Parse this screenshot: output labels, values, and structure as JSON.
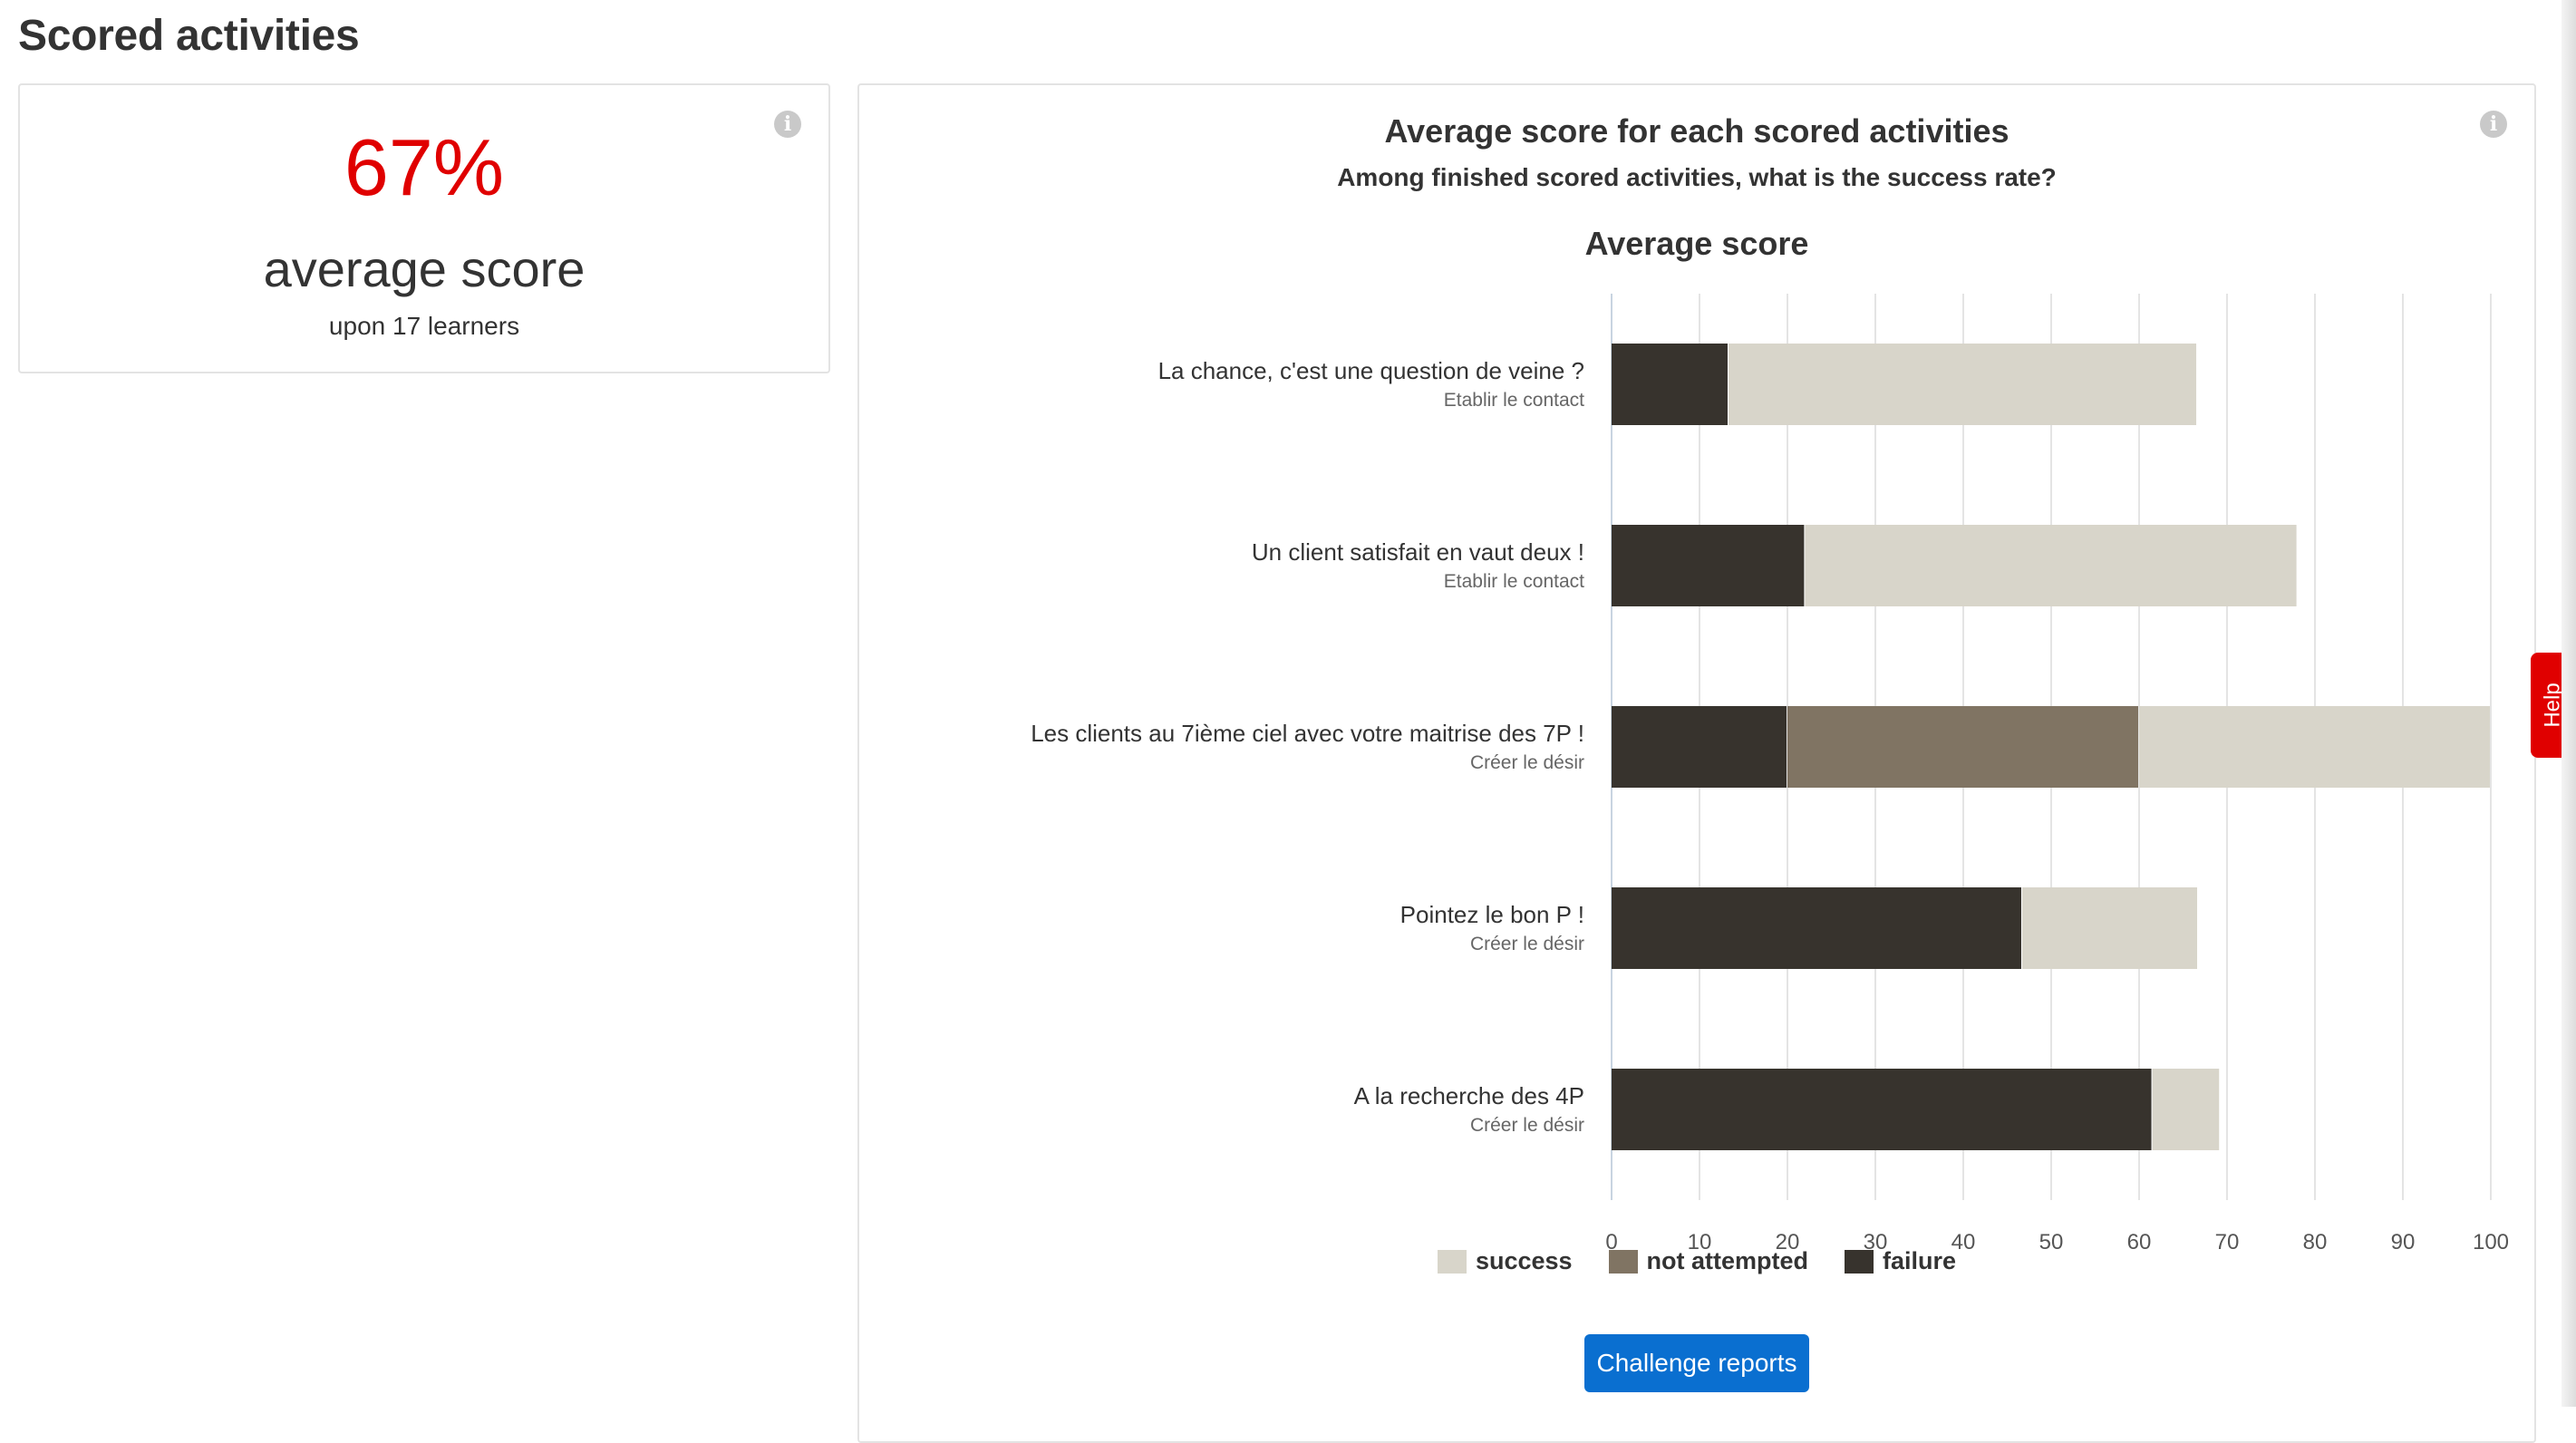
{
  "page": {
    "title": "Scored activities"
  },
  "kpi": {
    "value": "67%",
    "label": "average score",
    "sub": "upon 17 learners",
    "value_color": "#e00000"
  },
  "chart_card": {
    "title": "Average score for each scored activities",
    "subtitle": "Among finished scored activities, what is the success rate?",
    "button_label": "Challenge reports"
  },
  "help": {
    "label": "Help",
    "color": "#e00000"
  },
  "icons": {
    "info": "info-icon"
  },
  "chart_data": {
    "type": "bar",
    "orientation": "horizontal",
    "stacked": true,
    "title": "Average score",
    "xlabel": "",
    "ylabel": "",
    "xlim": [
      0,
      100
    ],
    "xticks": [
      "0",
      "10",
      "20",
      "30",
      "40",
      "50",
      "60",
      "70",
      "80",
      "90",
      "100"
    ],
    "grid": true,
    "legend_position": "bottom",
    "categories": [
      {
        "label": "La chance, c'est une question de veine ?",
        "sub": "Etablir le contact"
      },
      {
        "label": "Un client satisfait en vaut deux !",
        "sub": "Etablir le contact"
      },
      {
        "label": "Les clients au 7ième ciel avec votre maitrise des 7P !",
        "sub": "Créer le désir"
      },
      {
        "label": "Pointez le bon P !",
        "sub": "Créer le désir"
      },
      {
        "label": "A la recherche des 4P",
        "sub": "Créer le désir"
      }
    ],
    "series": [
      {
        "name": "failure",
        "color": "#37332d",
        "values": [
          13.3,
          22,
          20,
          46.7,
          61.5
        ]
      },
      {
        "name": "not attempted",
        "color": "#807463",
        "values": [
          0,
          0,
          40,
          0,
          0
        ]
      },
      {
        "name": "success",
        "color": "#d8d5ca",
        "values": [
          53.3,
          56,
          40,
          20,
          7.7
        ]
      }
    ],
    "legend_order": [
      "success",
      "not attempted",
      "failure"
    ]
  }
}
